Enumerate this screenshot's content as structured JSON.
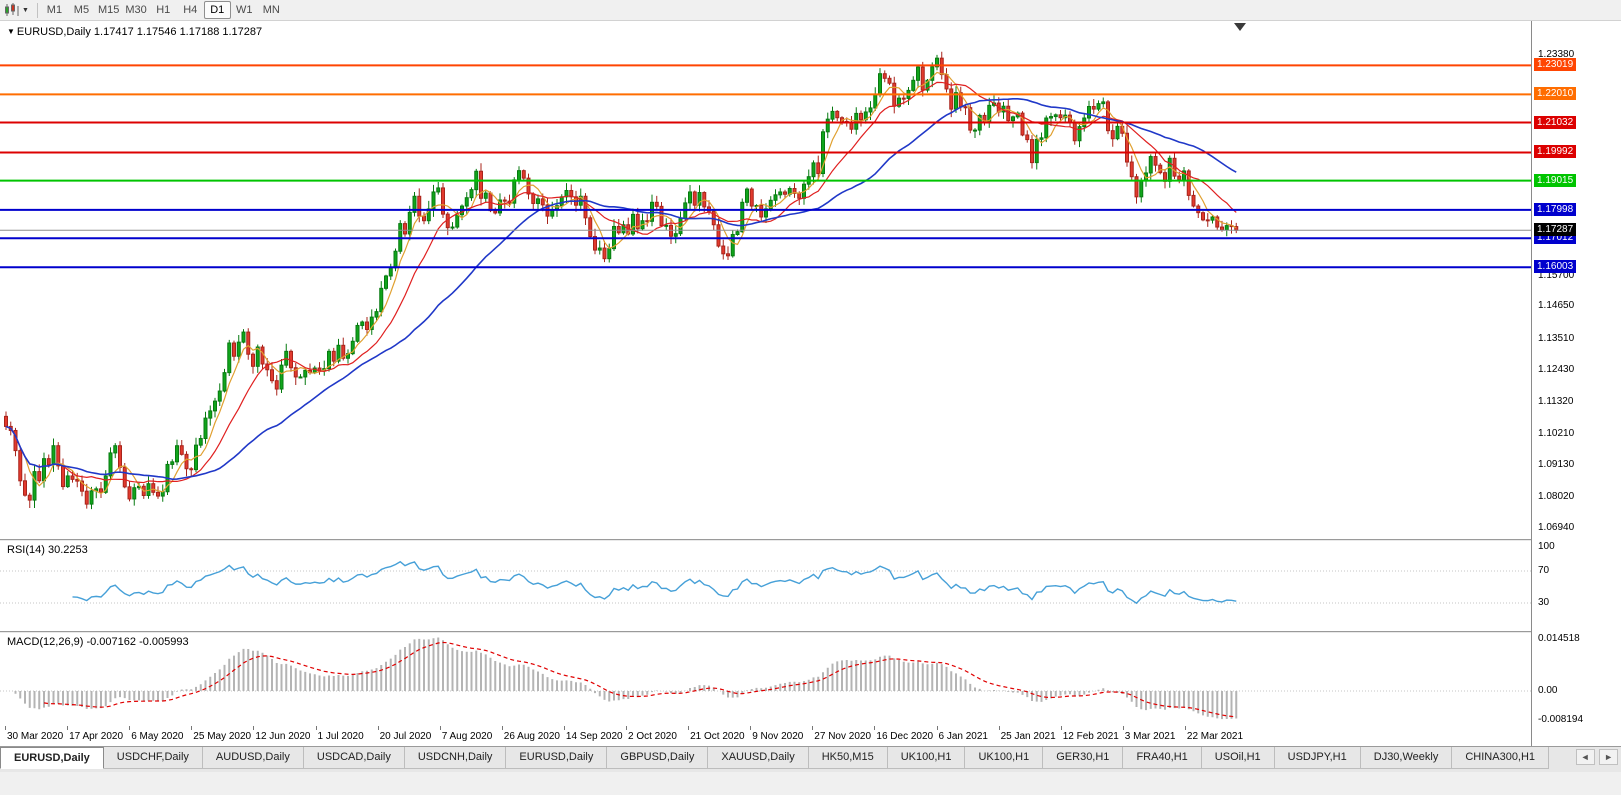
{
  "toolbar": {
    "timeframes": [
      "M1",
      "M5",
      "M15",
      "M30",
      "H1",
      "H4",
      "D1",
      "W1",
      "MN"
    ],
    "active_timeframe": "D1"
  },
  "main_chart": {
    "title": "EURUSD,Daily 1.17417 1.17546 1.17188 1.17287",
    "plain_axis_labels": [
      "1.23380",
      "1.15700",
      "1.14650",
      "1.13510",
      "1.12430",
      "1.11320",
      "1.10210",
      "1.09130",
      "1.08020",
      "1.06940"
    ],
    "hlines": [
      {
        "label": "1.23019",
        "price": 1.23019,
        "color": "#ff4502"
      },
      {
        "label": "1.22010",
        "price": 1.2201,
        "color": "#ff6d00"
      },
      {
        "label": "1.21032",
        "price": 1.21032,
        "color": "#dc0000"
      },
      {
        "label": "1.19992",
        "price": 1.19992,
        "color": "#dc0000"
      },
      {
        "label": "1.19015",
        "price": 1.19015,
        "color": "#00c400"
      },
      {
        "label": "1.17998",
        "price": 1.17998,
        "color": "#0000cd"
      },
      {
        "label": "1.17012",
        "price": 1.17012,
        "color": "#0000cd"
      },
      {
        "label": "1.16003",
        "price": 1.16003,
        "color": "#0000cd"
      }
    ],
    "bid_line": {
      "label": "1.17287",
      "price": 1.17287,
      "badge_color": "#000000"
    }
  },
  "rsi_panel": {
    "label": "RSI(14) 30.2253",
    "axis_labels": [
      {
        "text": "100",
        "value": 100
      },
      {
        "text": "70",
        "value": 70
      },
      {
        "text": "30",
        "value": 30
      }
    ],
    "levels": [
      70,
      30
    ],
    "line_color": "#46a0d8",
    "last_value": 30.2253
  },
  "macd_panel": {
    "label": "MACD(12,26,9) -0.007162 -0.005993",
    "axis_labels": [
      {
        "text": "0.014518",
        "value": 0.014518
      },
      {
        "text": "0.00",
        "value": 0
      },
      {
        "text": "-0.008194",
        "value": -0.008194
      }
    ],
    "histogram_color": "#b4b4b4",
    "signal_color": "#e00000",
    "last_values": [
      -0.007162,
      -0.005993
    ]
  },
  "tabs": {
    "items": [
      "EURUSD,Daily",
      "USDCHF,Daily",
      "AUDUSD,Daily",
      "USDCAD,Daily",
      "USDCNH,Daily",
      "EURUSD,Daily",
      "GBPUSD,Daily",
      "XAUUSD,Daily",
      "HK50,M15",
      "UK100,H1",
      "UK100,H1",
      "GER30,H1",
      "FRA40,H1",
      "USOil,H1",
      "USDJPY,H1",
      "DJ30,Weekly",
      "CHINA300,H1"
    ],
    "active_index": 0,
    "scroll_left": "◄",
    "scroll_right": "►"
  },
  "chart_data": {
    "type": "candlestick",
    "symbol": "EURUSD",
    "timeframe": "Daily",
    "ylim": [
      1.0694,
      1.2338
    ],
    "x_labels": [
      "30 Mar 2020",
      "17 Apr 2020",
      "6 May 2020",
      "25 May 2020",
      "12 Jun 2020",
      "1 Jul 2020",
      "20 Jul 2020",
      "7 Aug 2020",
      "26 Aug 2020",
      "14 Sep 2020",
      "2 Oct 2020",
      "21 Oct 2020",
      "9 Nov 2020",
      "27 Nov 2020",
      "16 Dec 2020",
      "6 Jan 2021",
      "25 Jan 2021",
      "12 Feb 2021",
      "3 Mar 2021",
      "22 Mar 2021"
    ],
    "closes": [
      1.1047,
      1.1033,
      1.0963,
      1.0858,
      1.0808,
      1.0791,
      1.089,
      1.0858,
      1.0935,
      1.0914,
      1.098,
      1.091,
      1.0838,
      1.0875,
      1.0863,
      1.0857,
      1.0822,
      1.0777,
      1.0823,
      1.083,
      1.0818,
      1.0875,
      1.0955,
      1.098,
      1.0905,
      1.0837,
      1.0795,
      1.0834,
      1.0839,
      1.0807,
      1.0848,
      1.0818,
      1.0805,
      1.082,
      1.0915,
      1.0924,
      1.098,
      1.095,
      1.09,
      1.0897,
      1.0982,
      1.1005,
      1.1076,
      1.1101,
      1.1135,
      1.117,
      1.1234,
      1.1337,
      1.1291,
      1.134,
      1.1375,
      1.1298,
      1.1256,
      1.1323,
      1.1264,
      1.1244,
      1.1206,
      1.1177,
      1.126,
      1.1308,
      1.1251,
      1.1219,
      1.1219,
      1.1242,
      1.1234,
      1.125,
      1.124,
      1.1248,
      1.1308,
      1.1274,
      1.1329,
      1.1284,
      1.13,
      1.1343,
      1.1398,
      1.141,
      1.1384,
      1.1427,
      1.1446,
      1.1527,
      1.157,
      1.1598,
      1.1656,
      1.1752,
      1.1716,
      1.1791,
      1.1847,
      1.1778,
      1.1762,
      1.1803,
      1.1862,
      1.1876,
      1.1785,
      1.1738,
      1.174,
      1.1783,
      1.1813,
      1.1842,
      1.187,
      1.1934,
      1.184,
      1.1858,
      1.1797,
      1.1789,
      1.1834,
      1.183,
      1.1823,
      1.1904,
      1.1936,
      1.191,
      1.1855,
      1.1822,
      1.1838,
      1.1817,
      1.1778,
      1.1801,
      1.1814,
      1.1845,
      1.1867,
      1.1845,
      1.1816,
      1.1847,
      1.1772,
      1.1707,
      1.166,
      1.1667,
      1.163,
      1.1665,
      1.1742,
      1.172,
      1.1748,
      1.1716,
      1.1784,
      1.1734,
      1.1762,
      1.176,
      1.1826,
      1.1812,
      1.1745,
      1.1746,
      1.1708,
      1.1717,
      1.177,
      1.1824,
      1.1862,
      1.1816,
      1.186,
      1.181,
      1.1795,
      1.1748,
      1.1674,
      1.1647,
      1.164,
      1.1714,
      1.1724,
      1.1826,
      1.1872,
      1.1813,
      1.1815,
      1.1775,
      1.1803,
      1.1833,
      1.1852,
      1.1862,
      1.1854,
      1.1874,
      1.1857,
      1.184,
      1.1889,
      1.1915,
      1.1963,
      1.1926,
      1.2071,
      1.2115,
      1.2142,
      1.212,
      1.2107,
      1.2105,
      1.208,
      1.2135,
      1.2113,
      1.214,
      1.2154,
      1.22,
      1.2273,
      1.2257,
      1.224,
      1.216,
      1.2188,
      1.2187,
      1.2215,
      1.225,
      1.2296,
      1.2216,
      1.225,
      1.2297,
      1.2327,
      1.227,
      1.222,
      1.215,
      1.2207,
      1.2158,
      1.2155,
      1.2077,
      1.2077,
      1.2128,
      1.2105,
      1.2163,
      1.2171,
      1.214,
      1.216,
      1.211,
      1.2123,
      1.2136,
      1.206,
      1.2044,
      1.1964,
      1.2045,
      1.205,
      1.2119,
      1.2124,
      1.213,
      1.212,
      1.2129,
      1.2105,
      1.204,
      1.2089,
      1.2119,
      1.2159,
      1.215,
      1.2169,
      1.2175,
      1.2075,
      1.2047,
      1.209,
      1.2066,
      1.1966,
      1.1915,
      1.1845,
      1.19,
      1.1928,
      1.1985,
      1.1955,
      1.1929,
      1.1899,
      1.1979,
      1.1917,
      1.1904,
      1.1935,
      1.185,
      1.1813,
      1.179,
      1.1765,
      1.1764,
      1.1775,
      1.174,
      1.173,
      1.1745,
      1.1742,
      1.17287
    ],
    "last_ohlc": {
      "open": 1.17417,
      "high": 1.17546,
      "low": 1.17188,
      "close": 1.17287
    },
    "up_color": "#10a51b",
    "down_color": "#e23a2e",
    "moving_averages": [
      {
        "type": "sma",
        "period": 5,
        "color": "#e0a030"
      },
      {
        "type": "sma",
        "period": 13,
        "color": "#e02020"
      },
      {
        "type": "sma",
        "period": 34,
        "color": "#2038c8"
      }
    ],
    "indicators": [
      {
        "name": "RSI",
        "period": 14,
        "value": 30.2253
      },
      {
        "name": "MACD",
        "fast": 12,
        "slow": 26,
        "signal": 9,
        "value": -0.007162,
        "signal_value": -0.005993
      }
    ]
  }
}
